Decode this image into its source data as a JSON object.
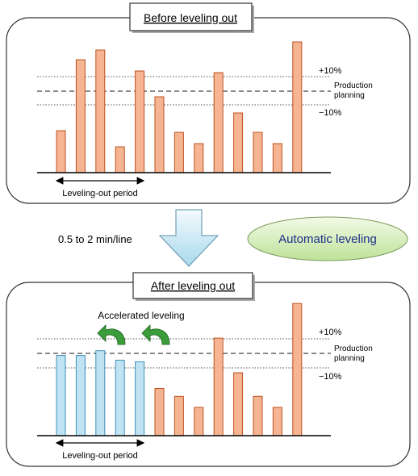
{
  "before": {
    "title": "Before leveling out",
    "bars": [
      {
        "value": 26,
        "kind": "normal"
      },
      {
        "value": 70,
        "kind": "normal"
      },
      {
        "value": 76,
        "kind": "normal"
      },
      {
        "value": 16,
        "kind": "normal"
      },
      {
        "value": 63,
        "kind": "normal"
      },
      {
        "value": 47,
        "kind": "normal"
      },
      {
        "value": 25,
        "kind": "normal"
      },
      {
        "value": 18,
        "kind": "normal"
      },
      {
        "value": 62,
        "kind": "normal"
      },
      {
        "value": 37,
        "kind": "normal"
      },
      {
        "value": 25,
        "kind": "normal"
      },
      {
        "value": 18,
        "kind": "normal"
      },
      {
        "value": 81,
        "kind": "normal"
      }
    ],
    "plus_label": "+10%",
    "minus_label": "−10%",
    "planning_label_line1": "Production",
    "planning_label_line2": "planning",
    "period_label": "Leveling-out period"
  },
  "transition": {
    "duration_label": "0.5 to 2 min/line",
    "badge_label": "Automatic leveling"
  },
  "after": {
    "title": "After leveling out",
    "accel_label": "Accelerated leveling",
    "bars": [
      {
        "value": 51,
        "kind": "leveled"
      },
      {
        "value": 51,
        "kind": "leveled"
      },
      {
        "value": 54,
        "kind": "leveled"
      },
      {
        "value": 48,
        "kind": "leveled"
      },
      {
        "value": 47,
        "kind": "leveled"
      },
      {
        "value": 30,
        "kind": "normal"
      },
      {
        "value": 25,
        "kind": "normal"
      },
      {
        "value": 18,
        "kind": "normal"
      },
      {
        "value": 62,
        "kind": "normal"
      },
      {
        "value": 40,
        "kind": "normal"
      },
      {
        "value": 25,
        "kind": "normal"
      },
      {
        "value": 18,
        "kind": "normal"
      },
      {
        "value": 84,
        "kind": "normal"
      }
    ],
    "plus_label": "+10%",
    "minus_label": "−10%",
    "planning_label_line1": "Production",
    "planning_label_line2": "planning",
    "period_label": "Leveling-out period"
  },
  "colors": {
    "bar_normal": "#f5b592",
    "bar_normal_stroke": "#c0501f",
    "bar_leveled": "#bfe3f2",
    "bar_leveled_stroke": "#3f8fb8",
    "arrow_green": "#3a9d3a",
    "badge_fill": "#d8eeb8",
    "badge_text": "#1c2f8a",
    "big_arrow": "#cce9f3"
  }
}
